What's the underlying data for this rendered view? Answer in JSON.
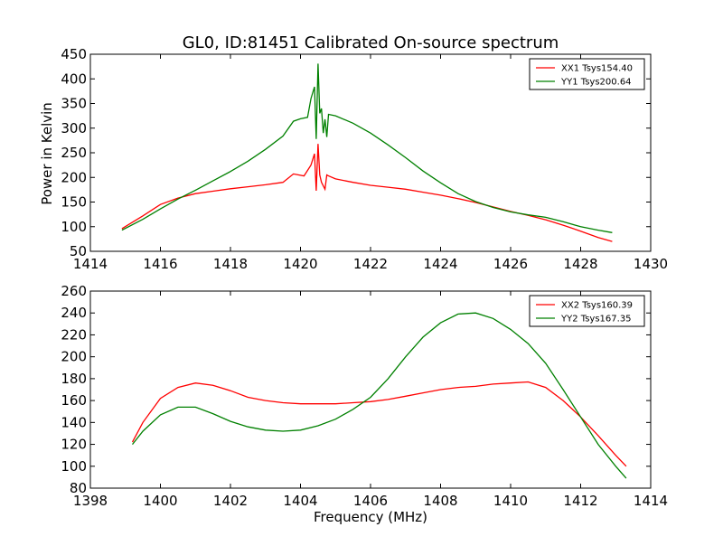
{
  "chart_data": [
    {
      "type": "line",
      "title": "GL0, ID:81451 Calibrated On-source spectrum",
      "xlabel": "",
      "ylabel": "Power in Kelvin",
      "xlim": [
        1414,
        1430
      ],
      "ylim": [
        50,
        450
      ],
      "xticks": [
        "1414",
        "1416",
        "1418",
        "1420",
        "1422",
        "1424",
        "1426",
        "1428",
        "1430"
      ],
      "yticks": [
        "50",
        "100",
        "150",
        "200",
        "250",
        "300",
        "350",
        "400",
        "450"
      ],
      "legend_position": "top-right",
      "grid": false,
      "series": [
        {
          "name": "XX1 Tsys154.40",
          "color": "#ff0000",
          "x": [
            1414.9,
            1415.5,
            1416.0,
            1416.5,
            1417.0,
            1417.5,
            1418.0,
            1418.5,
            1419.0,
            1419.5,
            1419.8,
            1420.1,
            1420.3,
            1420.4,
            1420.45,
            1420.5,
            1420.55,
            1420.6,
            1420.7,
            1420.75,
            1420.8,
            1421.0,
            1421.5,
            1422.0,
            1422.5,
            1423.0,
            1423.5,
            1424.0,
            1424.5,
            1425.0,
            1425.5,
            1426.0,
            1426.5,
            1427.0,
            1427.5,
            1428.0,
            1428.5,
            1428.9
          ],
          "y": [
            96,
            122,
            145,
            158,
            167,
            172,
            177,
            181,
            185,
            190,
            207,
            203,
            225,
            248,
            173,
            268,
            205,
            190,
            176,
            205,
            203,
            197,
            190,
            184,
            180,
            176,
            170,
            164,
            157,
            149,
            140,
            131,
            123,
            114,
            103,
            91,
            78,
            70
          ]
        },
        {
          "name": "YY1 Tsys200.64",
          "color": "#008000",
          "x": [
            1414.9,
            1415.5,
            1416.0,
            1416.5,
            1417.0,
            1417.5,
            1418.0,
            1418.5,
            1419.0,
            1419.5,
            1419.8,
            1420.0,
            1420.2,
            1420.3,
            1420.4,
            1420.45,
            1420.5,
            1420.55,
            1420.6,
            1420.65,
            1420.7,
            1420.75,
            1420.8,
            1421.0,
            1421.5,
            1422.0,
            1422.5,
            1423.0,
            1423.5,
            1424.0,
            1424.5,
            1425.0,
            1425.5,
            1426.0,
            1426.5,
            1427.0,
            1427.5,
            1428.0,
            1428.5,
            1428.9
          ],
          "y": [
            93,
            115,
            136,
            156,
            174,
            193,
            212,
            233,
            257,
            284,
            314,
            319,
            322,
            360,
            384,
            278,
            431,
            330,
            340,
            290,
            318,
            282,
            328,
            325,
            310,
            290,
            266,
            240,
            213,
            189,
            167,
            151,
            139,
            130,
            124,
            119,
            110,
            100,
            93,
            88
          ]
        }
      ]
    },
    {
      "type": "line",
      "title": "",
      "xlabel": "Frequency (MHz)",
      "ylabel": "",
      "xlim": [
        1398,
        1414
      ],
      "ylim": [
        80,
        260
      ],
      "xticks": [
        "1398",
        "1400",
        "1402",
        "1404",
        "1406",
        "1408",
        "1410",
        "1412",
        "1414"
      ],
      "yticks": [
        "80",
        "100",
        "120",
        "140",
        "160",
        "180",
        "200",
        "220",
        "240",
        "260"
      ],
      "legend_position": "top-right",
      "grid": false,
      "series": [
        {
          "name": "XX2 Tsys160.39",
          "color": "#ff0000",
          "x": [
            1399.2,
            1399.5,
            1400.0,
            1400.5,
            1401.0,
            1401.5,
            1402.0,
            1402.5,
            1403.0,
            1403.5,
            1404.0,
            1404.5,
            1405.0,
            1405.5,
            1406.0,
            1406.5,
            1407.0,
            1407.5,
            1408.0,
            1408.5,
            1409.0,
            1409.5,
            1410.0,
            1410.5,
            1411.0,
            1411.5,
            1412.0,
            1412.5,
            1413.0,
            1413.3
          ],
          "y": [
            122,
            140,
            162,
            172,
            176,
            174,
            169,
            163,
            160,
            158,
            157,
            157,
            157,
            158,
            159,
            161,
            164,
            167,
            170,
            172,
            173,
            175,
            176,
            177,
            172,
            160,
            145,
            128,
            110,
            100
          ]
        },
        {
          "name": "YY2 Tsys167.35",
          "color": "#008000",
          "x": [
            1399.2,
            1399.5,
            1400.0,
            1400.5,
            1401.0,
            1401.5,
            1402.0,
            1402.5,
            1403.0,
            1403.5,
            1404.0,
            1404.5,
            1405.0,
            1405.5,
            1406.0,
            1406.5,
            1407.0,
            1407.5,
            1408.0,
            1408.5,
            1409.0,
            1409.5,
            1410.0,
            1410.5,
            1411.0,
            1411.5,
            1412.0,
            1412.5,
            1413.0,
            1413.3
          ],
          "y": [
            120,
            132,
            147,
            154,
            154,
            148,
            141,
            136,
            133,
            132,
            133,
            137,
            143,
            152,
            163,
            180,
            200,
            218,
            231,
            239,
            240,
            235,
            225,
            212,
            194,
            170,
            145,
            120,
            100,
            89
          ]
        }
      ]
    }
  ]
}
